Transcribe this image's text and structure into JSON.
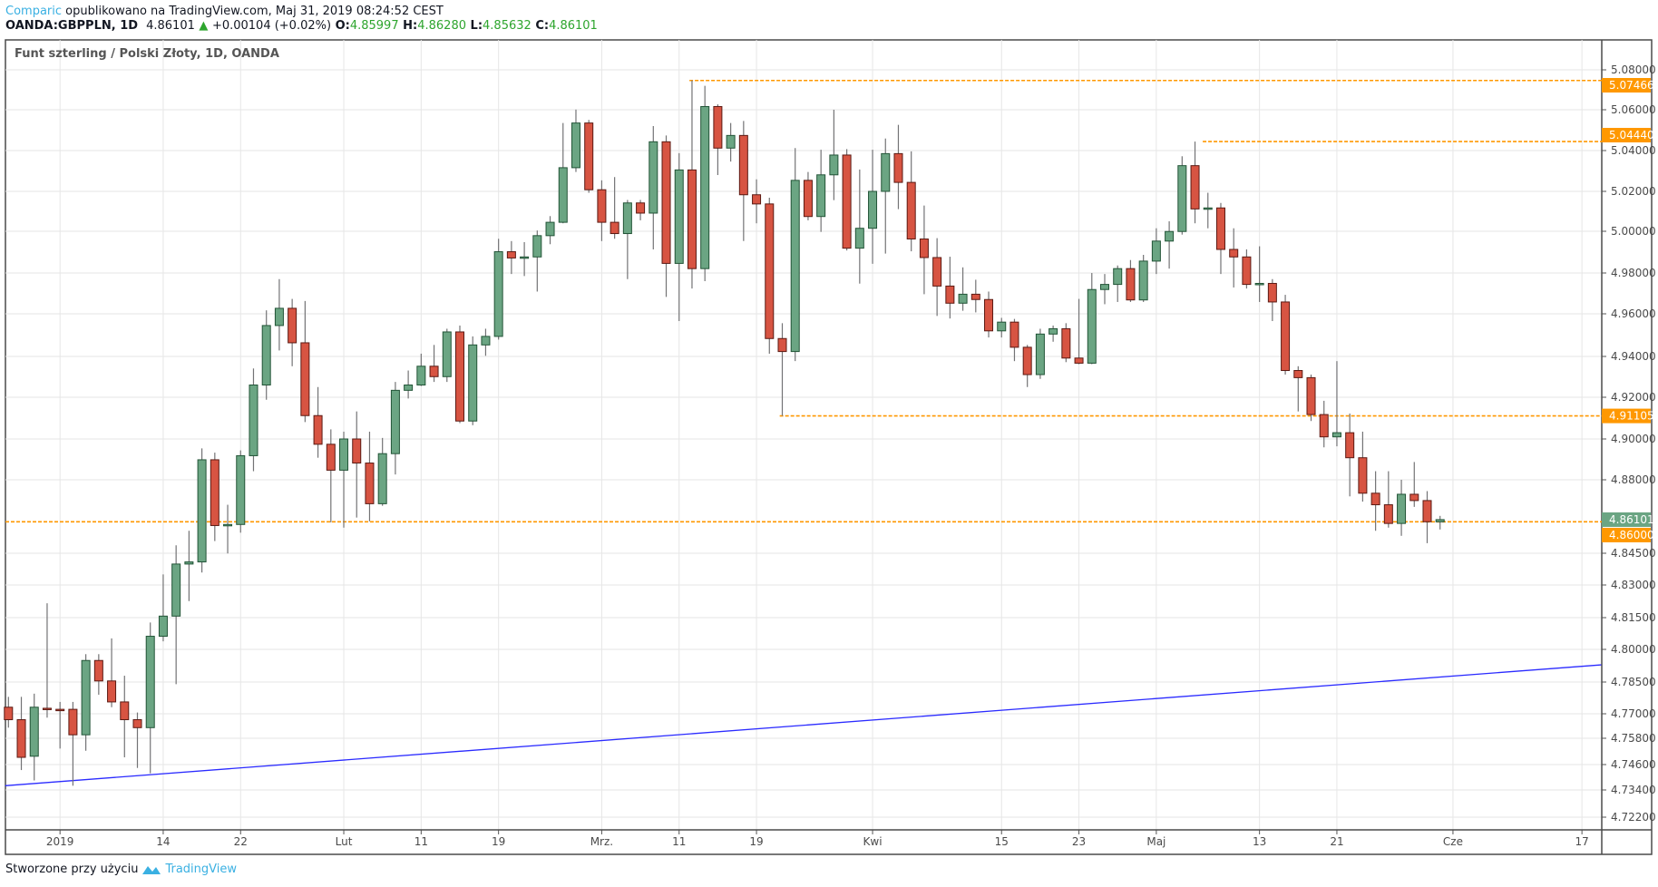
{
  "header": {
    "author": "Comparic",
    "published": "opublikowano na TradingView.com, Maj 31, 2019 08:24:52 CEST",
    "symbol": "OANDA:GBPPLN, 1D",
    "last": "4.86101",
    "change": "+0.00104 (+0.02%)",
    "o_label": "O:",
    "o": "4.85997",
    "h_label": "H:",
    "h": "4.86280",
    "l_label": "L:",
    "l": "4.85632",
    "c_label": "C:",
    "c": "4.86101"
  },
  "footer": {
    "text": "Stworzone przy użyciu",
    "brand": "TradingView"
  },
  "colors": {
    "up": "#6ba583",
    "up_border": "#225437",
    "down": "#d75442",
    "down_border": "#5b1a13",
    "wick": "#737375",
    "level": "#ff9800",
    "trend": "#2b2bff",
    "brand": "#3ab0e2"
  },
  "chart_data": {
    "type": "candlestick",
    "title": "Funt szterling / Polski Złoty, 1D, OANDA",
    "ylim": [
      4.7155,
      5.09
    ],
    "y_ticks": [
      "5.08000",
      "5.06000",
      "5.04000",
      "5.02000",
      "5.00000",
      "4.98000",
      "4.96000",
      "4.94000",
      "4.92000",
      "4.90000",
      "4.88000",
      "4.84500",
      "4.83000",
      "4.81500",
      "4.80000",
      "4.78500",
      "4.77000",
      "4.75800",
      "4.74600",
      "4.73400",
      "4.72200"
    ],
    "x_ticks": [
      {
        "index": 4,
        "label": "2019"
      },
      {
        "index": 12,
        "label": "14"
      },
      {
        "index": 18,
        "label": "22"
      },
      {
        "index": 26,
        "label": "Lut"
      },
      {
        "index": 32,
        "label": "11"
      },
      {
        "index": 38,
        "label": "19"
      },
      {
        "index": 46,
        "label": "Mrz."
      },
      {
        "index": 52,
        "label": "11"
      },
      {
        "index": 58,
        "label": "19"
      },
      {
        "index": 67,
        "label": "Kwi"
      },
      {
        "index": 77,
        "label": "15"
      },
      {
        "index": 83,
        "label": "23"
      },
      {
        "index": 89,
        "label": "Maj"
      },
      {
        "index": 97,
        "label": "13"
      },
      {
        "index": 103,
        "label": "21"
      },
      {
        "index": 112,
        "label": "Cze"
      },
      {
        "index": 122,
        "label": "17"
      }
    ],
    "ohlc": [
      [
        4.7731,
        4.778,
        4.7632,
        4.7671
      ],
      [
        4.7671,
        4.778,
        4.7434,
        4.7493
      ],
      [
        4.7498,
        4.7795,
        4.7385,
        4.7731
      ],
      [
        4.7726,
        4.8216,
        4.7681,
        4.7721
      ],
      [
        4.7721,
        4.7756,
        4.7533,
        4.7716
      ],
      [
        4.7721,
        4.7756,
        4.736,
        4.7597
      ],
      [
        4.7597,
        4.7978,
        4.7523,
        4.7949
      ],
      [
        4.7949,
        4.7978,
        4.779,
        4.7855
      ],
      [
        4.7855,
        4.8052,
        4.7731,
        4.7756
      ],
      [
        4.7756,
        4.7879,
        4.7493,
        4.7671
      ],
      [
        4.7671,
        4.7706,
        4.7444,
        4.7632
      ],
      [
        4.7632,
        4.8127,
        4.7419,
        4.8062
      ],
      [
        4.8062,
        4.835,
        4.8038,
        4.8157
      ],
      [
        4.8157,
        4.8488,
        4.784,
        4.8399
      ],
      [
        4.8399,
        4.8557,
        4.8226,
        4.8409
      ],
      [
        4.8409,
        4.8954,
        4.8359,
        4.8898
      ],
      [
        4.8898,
        4.8933,
        4.8508,
        4.8582
      ],
      [
        4.8582,
        4.8681,
        4.8449,
        4.8587
      ],
      [
        4.8587,
        4.8944,
        4.8548,
        4.8918
      ],
      [
        4.8918,
        4.9341,
        4.8842,
        4.926
      ],
      [
        4.926,
        4.9617,
        4.9188,
        4.9545
      ],
      [
        4.9545,
        4.977,
        4.9428,
        4.9627
      ],
      [
        4.9627,
        4.9673,
        4.9352,
        4.9464
      ],
      [
        4.9464,
        4.9663,
        4.9081,
        4.9112
      ],
      [
        4.9112,
        4.925,
        4.8908,
        4.8974
      ],
      [
        4.8974,
        4.9046,
        4.8597,
        4.8847
      ],
      [
        4.8847,
        4.9035,
        4.8572,
        4.9
      ],
      [
        4.9,
        4.9132,
        4.862,
        4.8882
      ],
      [
        4.8882,
        4.9035,
        4.8602,
        4.8686
      ],
      [
        4.8686,
        4.9005,
        4.8676,
        4.8928
      ],
      [
        4.8928,
        4.9275,
        4.8826,
        4.9234
      ],
      [
        4.9234,
        4.9331,
        4.9194,
        4.926
      ],
      [
        4.926,
        4.9413,
        4.9255,
        4.9352
      ],
      [
        4.9352,
        4.9454,
        4.9275,
        4.9301
      ],
      [
        4.9301,
        4.953,
        4.9275,
        4.9515
      ],
      [
        4.9515,
        4.9545,
        4.9076,
        4.9086
      ],
      [
        4.9086,
        4.9494,
        4.9066,
        4.9454
      ],
      [
        4.9454,
        4.953,
        4.9403,
        4.9494
      ],
      [
        4.9494,
        4.9964,
        4.9479,
        4.9902
      ],
      [
        4.9902,
        4.9953,
        4.9795,
        4.9872
      ],
      [
        4.9872,
        4.9948,
        4.9785,
        4.9877
      ],
      [
        4.9877,
        5.0004,
        4.9709,
        4.9979
      ],
      [
        4.9979,
        5.0076,
        4.9938,
        5.0045
      ],
      [
        5.0045,
        5.0535,
        5.004,
        5.0316
      ],
      [
        5.0316,
        5.0601,
        5.0295,
        5.0535
      ],
      [
        5.0535,
        5.055,
        5.0193,
        5.0208
      ],
      [
        5.0208,
        5.0254,
        4.9953,
        5.0045
      ],
      [
        5.0045,
        5.027,
        4.9964,
        4.9989
      ],
      [
        4.9989,
        5.0157,
        4.977,
        5.0142
      ],
      [
        5.0142,
        5.0157,
        5.0055,
        5.0091
      ],
      [
        5.0091,
        5.052,
        4.9913,
        5.0443
      ],
      [
        5.0443,
        5.0474,
        4.9683,
        4.9846
      ],
      [
        4.9846,
        5.0387,
        4.9566,
        5.0305
      ],
      [
        5.0305,
        5.0747,
        4.9724,
        4.9821
      ],
      [
        4.9821,
        5.072,
        4.976,
        5.0616
      ],
      [
        5.0616,
        5.0627,
        5.028,
        5.0412
      ],
      [
        5.0412,
        5.0535,
        5.0346,
        5.0474
      ],
      [
        5.0474,
        5.0545,
        4.9953,
        5.0183
      ],
      [
        5.0183,
        5.0259,
        5.004,
        5.0137
      ],
      [
        5.0137,
        5.0168,
        4.9413,
        4.9484
      ],
      [
        4.9484,
        4.9556,
        4.9111,
        4.9423
      ],
      [
        4.9423,
        5.0412,
        4.9377,
        5.0254
      ],
      [
        5.0254,
        5.0295,
        5.0055,
        5.0074
      ],
      [
        5.0074,
        5.0404,
        4.9997,
        5.0281
      ],
      [
        5.0281,
        5.06,
        5.0156,
        5.0378
      ],
      [
        5.0378,
        5.0407,
        4.9908,
        4.9919
      ],
      [
        4.9919,
        5.0307,
        4.9748,
        5.0015
      ],
      [
        5.0015,
        5.0404,
        4.9844,
        5.02
      ],
      [
        5.02,
        5.0459,
        4.9893,
        5.0385
      ],
      [
        5.0385,
        5.0526,
        5.0111,
        5.0244
      ],
      [
        5.0244,
        5.0396,
        4.9904,
        4.9963
      ],
      [
        4.9963,
        5.0129,
        4.9696,
        4.9874
      ],
      [
        4.9874,
        4.9967,
        4.959,
        4.9736
      ],
      [
        4.9736,
        4.9878,
        4.9578,
        4.9652
      ],
      [
        4.9652,
        4.9827,
        4.9615,
        4.9696
      ],
      [
        4.9696,
        4.9767,
        4.9607,
        4.967
      ],
      [
        4.967,
        4.9709,
        4.9489,
        4.952
      ],
      [
        4.952,
        4.9581,
        4.9489,
        4.9561
      ],
      [
        4.9561,
        4.9576,
        4.9377,
        4.9443
      ],
      [
        4.9443,
        4.9454,
        4.925,
        4.9311
      ],
      [
        4.9311,
        4.953,
        4.929,
        4.9505
      ],
      [
        4.9505,
        4.9545,
        4.9469,
        4.953
      ],
      [
        4.953,
        4.9556,
        4.9372,
        4.9392
      ],
      [
        4.9392,
        4.9673,
        4.9362,
        4.9367
      ],
      [
        4.9367,
        4.98,
        4.9362,
        4.9719
      ],
      [
        4.9719,
        4.9795,
        4.9647,
        4.9744
      ],
      [
        4.9744,
        4.9836,
        4.9658,
        4.9821
      ],
      [
        4.9821,
        4.9862,
        4.9658,
        4.9668
      ],
      [
        4.9668,
        4.9887,
        4.9658,
        4.9857
      ],
      [
        4.9857,
        5.0015,
        4.9795,
        4.9953
      ],
      [
        4.9953,
        5.005,
        4.9821,
        4.9999
      ],
      [
        4.9999,
        5.0372,
        4.9984,
        5.0326
      ],
      [
        5.0326,
        5.0444,
        5.004,
        5.0112
      ],
      [
        5.0112,
        5.0193,
        5.0015,
        5.0117
      ],
      [
        5.0117,
        5.0142,
        4.9795,
        4.9913
      ],
      [
        4.9913,
        5.0015,
        4.9729,
        4.9877
      ],
      [
        4.9877,
        4.9913,
        4.9724,
        4.9744
      ],
      [
        4.9744,
        4.9928,
        4.9658,
        4.9749
      ],
      [
        4.9749,
        4.977,
        4.9566,
        4.9658
      ],
      [
        4.9658,
        4.9693,
        4.9311,
        4.9331
      ],
      [
        4.9331,
        4.9352,
        4.9132,
        4.9296
      ],
      [
        4.9296,
        4.9311,
        4.9086,
        4.9117
      ],
      [
        4.9117,
        4.9183,
        4.8959,
        4.901
      ],
      [
        4.901,
        4.9377,
        4.8964,
        4.903
      ],
      [
        4.903,
        4.9122,
        4.8721,
        4.8908
      ],
      [
        4.8908,
        4.9035,
        4.8696,
        4.8736
      ],
      [
        4.8736,
        4.8842,
        4.8557,
        4.8681
      ],
      [
        4.8681,
        4.8842,
        4.8572,
        4.8592
      ],
      [
        4.8592,
        4.88,
        4.8533,
        4.8731
      ],
      [
        4.8731,
        4.8887,
        4.8671,
        4.8701
      ],
      [
        4.8701,
        4.8746,
        4.8498,
        4.86
      ],
      [
        4.85997,
        4.8628,
        4.85632,
        4.86101
      ]
    ],
    "levels": [
      {
        "price": 5.07466,
        "label": "5.07466",
        "from_index": 52.8
      },
      {
        "price": 5.0444,
        "label": "5.04440",
        "from_index": 92.6
      },
      {
        "price": 4.91105,
        "label": "4.91105",
        "from_index": 59.8
      },
      {
        "price": 4.86,
        "label": "4.86000",
        "from_index": -1
      }
    ],
    "current_price": {
      "price": 4.86101,
      "label": "4.86101"
    },
    "trendline": [
      {
        "index": -0.25,
        "price": 4.736
      },
      {
        "index": 123.5,
        "price": 4.7929
      }
    ]
  }
}
